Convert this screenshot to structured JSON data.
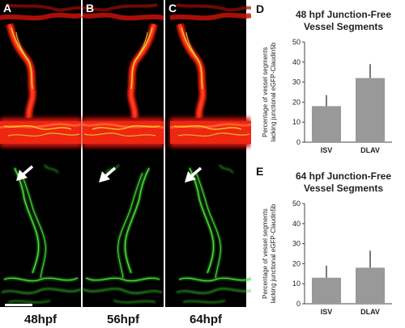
{
  "figure": {
    "micrograph_panels": [
      {
        "label": "A",
        "timepoint": "48hpf"
      },
      {
        "label": "B",
        "timepoint": "56hpf"
      },
      {
        "label": "C",
        "timepoint": "64hpf"
      }
    ],
    "colors": {
      "red_channel": "#e41a0a",
      "green_channel": "#38d12a",
      "merge_yellow": "#f4d820",
      "background": "#000000",
      "bar_fill": "#999999"
    }
  },
  "chart_data": [
    {
      "panel_label": "D",
      "type": "bar",
      "title_line1": "48 hpf Junction-Free",
      "title_line2": "Vessel Segments",
      "ylabel_line1": "Percentage of vessel segments",
      "ylabel_line2": "lacking junctional eGFP-Claudin5b",
      "categories": [
        "ISV",
        "DLAV"
      ],
      "values": [
        18,
        32
      ],
      "errors": [
        5.5,
        7
      ],
      "ylim": [
        0,
        50
      ],
      "yticks": [
        "0",
        "10",
        "20",
        "30",
        "40",
        "50"
      ],
      "grid": false
    },
    {
      "panel_label": "E",
      "type": "bar",
      "title_line1": "64 hpf Junction-Free",
      "title_line2": "Vessel Segments",
      "ylabel_line1": "Percentage of vessel segments",
      "ylabel_line2": "lacking junctional eGFP-Claudin5b",
      "categories": [
        "ISV",
        "DLAV"
      ],
      "values": [
        13,
        18
      ],
      "errors": [
        6,
        8.5
      ],
      "ylim": [
        0,
        50
      ],
      "yticks": [
        "0",
        "10",
        "20",
        "30",
        "40",
        "50"
      ],
      "grid": false
    }
  ]
}
